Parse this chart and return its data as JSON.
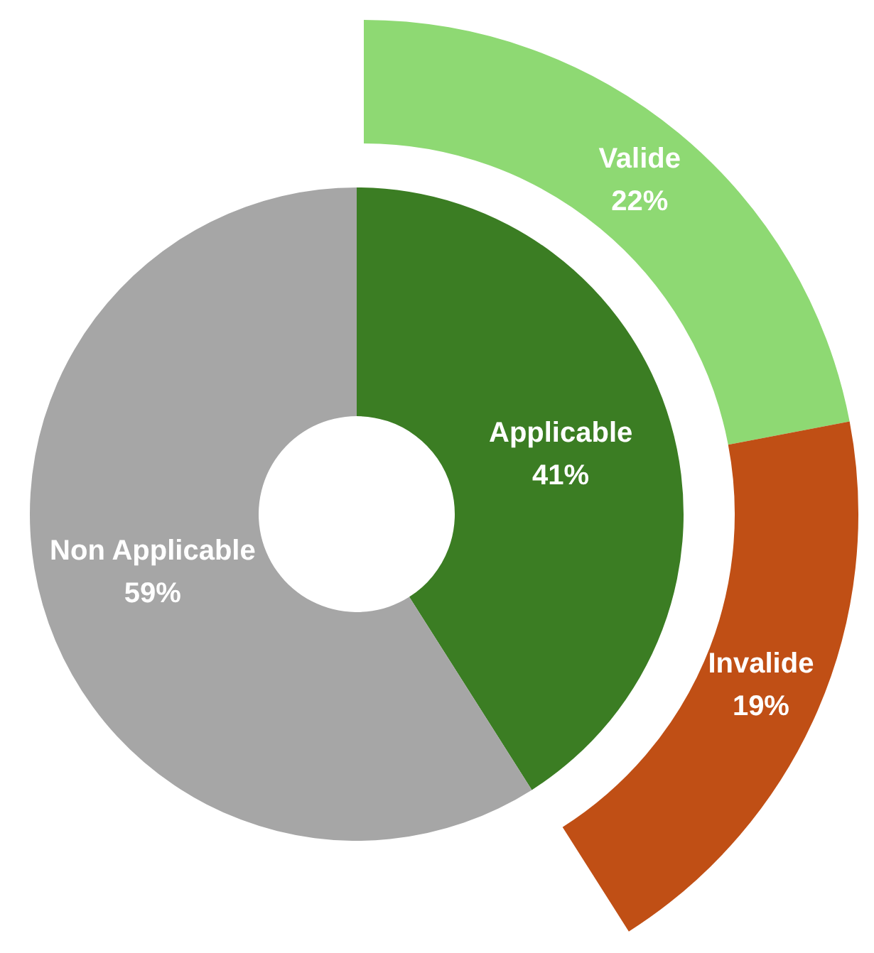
{
  "chart_data": [
    {
      "type": "donut",
      "categories": [
        "Applicable",
        "Non Applicable"
      ],
      "values": [
        41,
        59
      ],
      "colors": [
        "#3b7d23",
        "#a6a6a6"
      ],
      "value_labels": [
        "41%",
        "59%"
      ]
    },
    {
      "type": "donut",
      "categories": [
        "Valide",
        "Invalide"
      ],
      "values": [
        22,
        19
      ],
      "colors": [
        "#8ed973",
        "#c04f15"
      ],
      "value_labels": [
        "22%",
        "19%"
      ]
    }
  ]
}
